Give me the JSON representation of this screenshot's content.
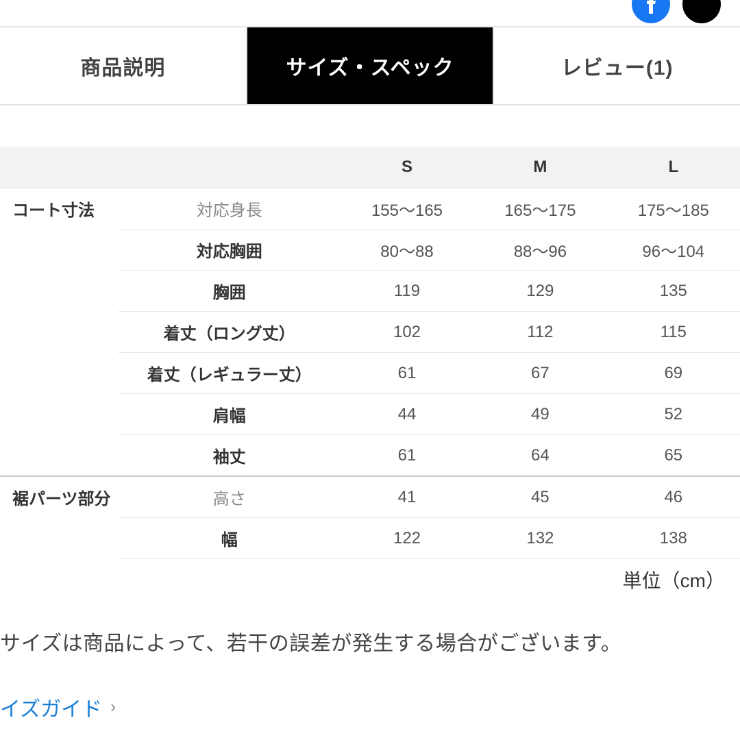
{
  "colors": {
    "active_tab_bg": "#000000",
    "active_tab_fg": "#ffffff",
    "inactive_tab_fg": "#444444",
    "header_bg": "#f2f2f2",
    "border": "#e8e8e8",
    "muted_text": "#888888",
    "link": "#1a80d6"
  },
  "tabs": [
    {
      "label": "商品説明",
      "active": false
    },
    {
      "label": "サイズ・スペック",
      "active": true
    },
    {
      "label": "レビュー(1)",
      "active": false
    }
  ],
  "sizeTable": {
    "sizes": [
      "S",
      "M",
      "L"
    ],
    "groups": [
      {
        "name": "コート寸法",
        "rows": [
          {
            "attr": "対応身長",
            "muted": true,
            "vals": [
              "155～165",
              "165～175",
              "175～185"
            ]
          },
          {
            "attr": "対応胸囲",
            "muted": false,
            "vals": [
              "80～88",
              "88～96",
              "96～104"
            ]
          },
          {
            "attr": "胸囲",
            "muted": false,
            "vals": [
              "119",
              "129",
              "135"
            ]
          },
          {
            "attr": "着丈（ロング丈）",
            "muted": false,
            "vals": [
              "102",
              "112",
              "115"
            ]
          },
          {
            "attr": "着丈（レギュラー丈）",
            "muted": false,
            "vals": [
              "61",
              "67",
              "69"
            ]
          },
          {
            "attr": "肩幅",
            "muted": false,
            "vals": [
              "44",
              "49",
              "52"
            ]
          },
          {
            "attr": "袖丈",
            "muted": false,
            "vals": [
              "61",
              "64",
              "65"
            ]
          }
        ]
      },
      {
        "name": "裾パーツ部分",
        "rows": [
          {
            "attr": "高さ",
            "muted": true,
            "vals": [
              "41",
              "45",
              "46"
            ]
          },
          {
            "attr": "幅",
            "muted": false,
            "vals": [
              "122",
              "132",
              "138"
            ]
          }
        ]
      }
    ],
    "unit": "単位（cm）"
  },
  "note": "サイズは商品によって、若干の誤差が発生する場合がございます。",
  "link": {
    "label": "イズガイド"
  }
}
